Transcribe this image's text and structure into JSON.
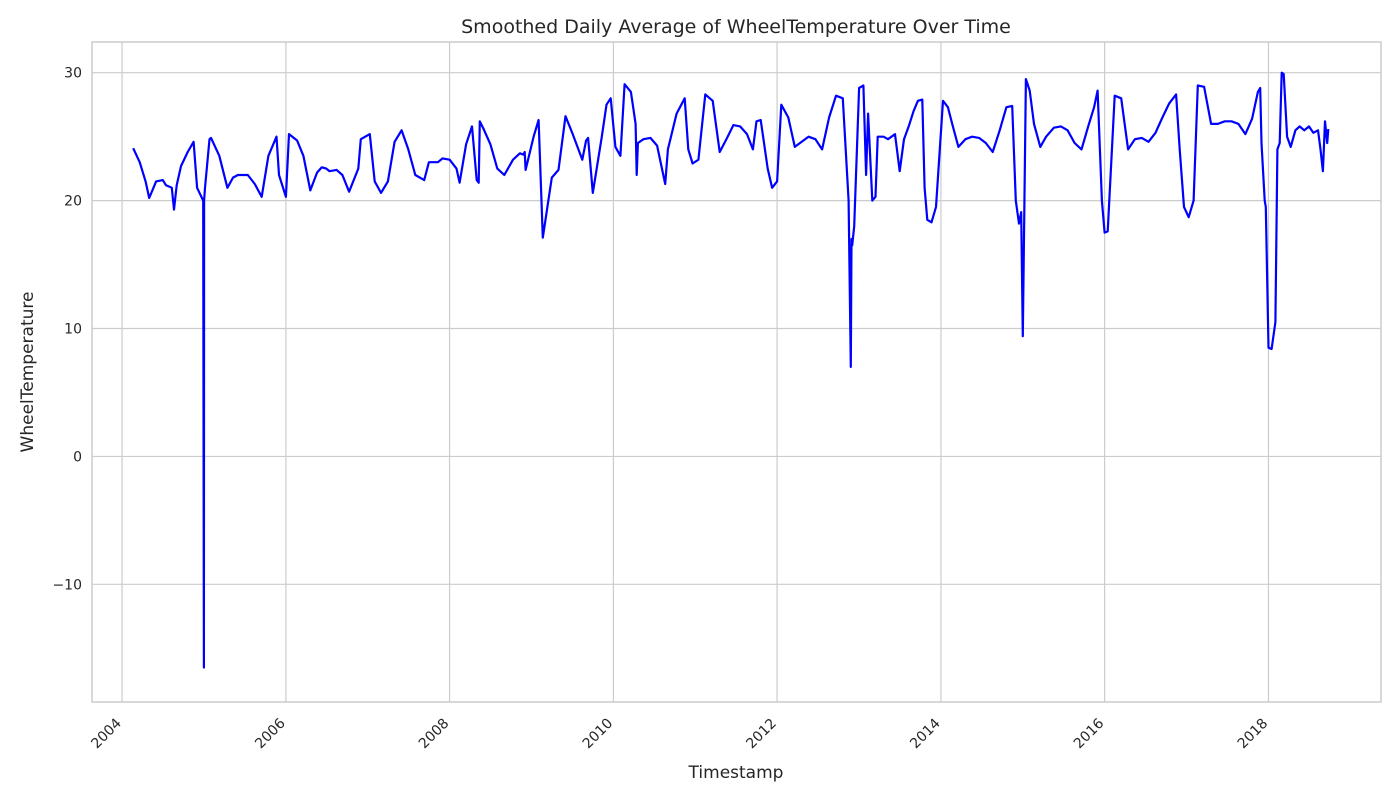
{
  "chart_data": {
    "type": "line",
    "title": "Smoothed Daily Average of WheelTemperature Over Time",
    "xlabel": "Timestamp",
    "ylabel": "WheelTemperature",
    "xlim": [
      "2003-08-20",
      "2019-05-18"
    ],
    "ylim": [
      -19.2,
      32.4
    ],
    "x_ticks": [
      "2004",
      "2006",
      "2008",
      "2010",
      "2012",
      "2014",
      "2016",
      "2018"
    ],
    "y_ticks": [
      "−10",
      "0",
      "10",
      "20",
      "30"
    ],
    "y_tick_values": [
      -10,
      0,
      10,
      20,
      30
    ],
    "grid": true,
    "legend": "none",
    "line_color": "#0000ff",
    "series": [
      {
        "x": [
          "2004-02-20",
          "2004-03-20",
          "2004-04-15",
          "2004-05-01",
          "2004-06-01",
          "2004-07-01",
          "2004-07-15",
          "2004-08-10",
          "2004-08-20",
          "2004-09-01",
          "2004-09-20",
          "2004-10-20",
          "2004-11-15",
          "2004-12-01",
          "2004-12-28",
          "2004-12-31",
          "2005-01-01",
          "2005-01-05",
          "2005-01-25",
          "2005-02-01",
          "2005-03-10",
          "2005-04-15",
          "2005-05-10",
          "2005-06-01",
          "2005-07-15",
          "2005-08-15",
          "2005-09-15",
          "2005-10-15",
          "2005-11-20",
          "2005-12-01",
          "2006-01-01",
          "2006-01-15",
          "2006-02-20",
          "2006-03-20",
          "2006-04-20",
          "2006-05-20",
          "2006-06-10",
          "2006-06-30",
          "2006-07-15",
          "2006-08-15",
          "2006-09-10",
          "2006-10-10",
          "2006-11-20",
          "2006-12-01",
          "2007-01-10",
          "2007-02-01",
          "2007-03-01",
          "2007-04-01",
          "2007-05-01",
          "2007-06-01",
          "2007-07-01",
          "2007-08-01",
          "2007-09-10",
          "2007-10-01",
          "2007-11-10",
          "2007-12-01",
          "2008-01-01",
          "2008-02-01",
          "2008-02-15",
          "2008-03-15",
          "2008-04-10",
          "2008-05-01",
          "2008-05-10",
          "2008-05-15",
          "2008-06-01",
          "2008-07-01",
          "2008-08-01",
          "2008-09-01",
          "2008-10-10",
          "2008-11-10",
          "2008-11-25",
          "2008-12-01",
          "2008-12-05",
          "2009-01-10",
          "2009-02-01",
          "2009-02-20",
          "2009-04-01",
          "2009-05-01",
          "2009-06-01",
          "2009-07-01",
          "2009-08-15",
          "2009-09-01",
          "2009-09-10",
          "2009-10-01",
          "2009-11-10",
          "2009-12-01",
          "2009-12-20",
          "2010-01-10",
          "2010-02-01",
          "2010-02-20",
          "2010-03-20",
          "2010-04-10",
          "2010-04-15",
          "2010-04-20",
          "2010-05-15",
          "2010-06-15",
          "2010-07-15",
          "2010-08-20",
          "2010-09-01",
          "2010-10-10",
          "2010-11-15",
          "2010-12-01",
          "2010-12-20",
          "2011-01-15",
          "2011-02-15",
          "2011-03-20",
          "2011-04-20",
          "2011-05-20",
          "2011-06-20",
          "2011-07-20",
          "2011-08-20",
          "2011-09-15",
          "2011-10-01",
          "2011-10-20",
          "2011-11-20",
          "2011-12-10",
          "2012-01-01",
          "2012-01-20",
          "2012-02-20",
          "2012-03-20",
          "2012-04-20",
          "2012-05-20",
          "2012-06-20",
          "2012-07-20",
          "2012-08-20",
          "2012-09-20",
          "2012-10-20",
          "2012-11-15",
          "2012-11-25",
          "2012-11-28",
          "2012-12-01",
          "2012-12-10",
          "2013-01-01",
          "2013-01-20",
          "2013-02-01",
          "2013-02-10",
          "2013-03-01",
          "2013-03-15",
          "2013-03-25",
          "2013-04-05",
          "2013-04-20",
          "2013-05-10",
          "2013-06-10",
          "2013-07-01",
          "2013-07-20",
          "2013-08-10",
          "2013-09-01",
          "2013-09-20",
          "2013-10-10",
          "2013-10-20",
          "2013-11-01",
          "2013-11-20",
          "2013-12-10",
          "2014-01-10",
          "2014-02-01",
          "2014-02-20",
          "2014-03-20",
          "2014-04-20",
          "2014-05-20",
          "2014-06-20",
          "2014-07-20",
          "2014-08-20",
          "2014-09-20",
          "2014-10-20",
          "2014-11-15",
          "2014-12-01",
          "2014-12-15",
          "2014-12-25",
          "2015-01-01",
          "2015-01-15",
          "2015-02-01",
          "2015-02-20",
          "2015-03-20",
          "2015-04-15",
          "2015-05-20",
          "2015-06-20",
          "2015-07-20",
          "2015-08-20",
          "2015-09-20",
          "2015-10-20",
          "2015-11-15",
          "2015-12-01",
          "2015-12-20",
          "2016-01-01",
          "2016-01-15",
          "2016-02-15",
          "2016-03-15",
          "2016-04-15",
          "2016-05-15",
          "2016-06-15",
          "2016-07-15",
          "2016-08-15",
          "2016-09-15",
          "2016-10-15",
          "2016-11-15",
          "2016-12-01",
          "2016-12-20",
          "2017-01-10",
          "2017-02-01",
          "2017-02-20",
          "2017-03-20",
          "2017-04-20",
          "2017-05-20",
          "2017-06-20",
          "2017-07-20",
          "2017-08-20",
          "2017-09-20",
          "2017-10-20",
          "2017-11-15",
          "2017-11-25",
          "2017-12-01",
          "2017-12-15",
          "2017-12-20",
          "2018-01-01",
          "2018-01-15",
          "2018-02-01",
          "2018-02-10",
          "2018-02-20",
          "2018-03-01",
          "2018-03-10",
          "2018-03-25",
          "2018-04-10",
          "2018-05-01",
          "2018-05-20",
          "2018-06-10",
          "2018-07-01",
          "2018-07-20",
          "2018-08-10",
          "2018-08-20",
          "2018-09-01",
          "2018-09-10",
          "2018-09-20",
          "2018-09-25"
        ],
        "y": [
          24.1,
          23.0,
          21.5,
          20.2,
          21.5,
          21.6,
          21.2,
          21.0,
          19.3,
          21.2,
          22.7,
          23.8,
          24.6,
          21.0,
          20.0,
          -16.5,
          20.0,
          21.0,
          24.8,
          24.9,
          23.5,
          21.0,
          21.8,
          22.0,
          22.0,
          21.3,
          20.3,
          23.5,
          25.0,
          22.0,
          20.3,
          25.2,
          24.7,
          23.5,
          20.8,
          22.2,
          22.6,
          22.5,
          22.3,
          22.4,
          22.0,
          20.7,
          22.5,
          24.8,
          25.2,
          21.5,
          20.6,
          21.5,
          24.6,
          25.5,
          24.0,
          22.0,
          21.6,
          23.0,
          23.0,
          23.3,
          23.2,
          22.5,
          21.4,
          24.4,
          25.8,
          21.6,
          21.4,
          26.2,
          25.6,
          24.4,
          22.5,
          22.0,
          23.2,
          23.7,
          23.6,
          23.8,
          22.4,
          25.0,
          26.3,
          17.1,
          21.8,
          22.4,
          26.6,
          25.3,
          23.2,
          24.7,
          24.9,
          20.6,
          25.0,
          27.5,
          28.0,
          24.2,
          23.5,
          29.1,
          28.5,
          26.0,
          22.0,
          24.5,
          24.8,
          24.9,
          24.3,
          21.3,
          24.0,
          26.8,
          28.0,
          24.0,
          22.9,
          23.2,
          28.3,
          27.8,
          23.8,
          24.8,
          25.9,
          25.8,
          25.2,
          24.0,
          26.2,
          26.3,
          22.5,
          21.0,
          21.5,
          27.5,
          26.5,
          24.2,
          24.6,
          25.0,
          24.8,
          24.0,
          26.5,
          28.2,
          28.0,
          20.0,
          7.0,
          17.0,
          16.5,
          18.0,
          28.8,
          29.0,
          22.0,
          26.8,
          20.0,
          20.3,
          25.0,
          25.0,
          25.0,
          24.8,
          25.2,
          22.3,
          24.8,
          25.8,
          27.0,
          27.8,
          27.9,
          21.0,
          18.5,
          18.3,
          19.5,
          27.8,
          27.3,
          26.0,
          24.2,
          24.8,
          25.0,
          24.9,
          24.5,
          23.8,
          25.5,
          27.3,
          27.4,
          20.0,
          18.2,
          19.1,
          9.4,
          29.5,
          28.6,
          26.0,
          24.2,
          25.0,
          25.7,
          25.8,
          25.5,
          24.5,
          24.0,
          25.8,
          27.3,
          28.6,
          20.0,
          17.5,
          17.6,
          28.2,
          28.0,
          24.0,
          24.8,
          24.9,
          24.6,
          25.3,
          26.5,
          27.6,
          28.3,
          24.0,
          19.5,
          18.7,
          20.0,
          29.0,
          28.9,
          26.0,
          26.0,
          26.2,
          26.2,
          26.0,
          25.2,
          26.4,
          28.5,
          28.8,
          24.5,
          20.0,
          19.5,
          8.5,
          8.4,
          10.5,
          24.0,
          24.5,
          30.0,
          29.9,
          25.0,
          24.2,
          25.5,
          25.8,
          25.5,
          25.8,
          25.3,
          25.5,
          24.2,
          22.3,
          26.2,
          24.5,
          25.6
        ]
      }
    ]
  }
}
